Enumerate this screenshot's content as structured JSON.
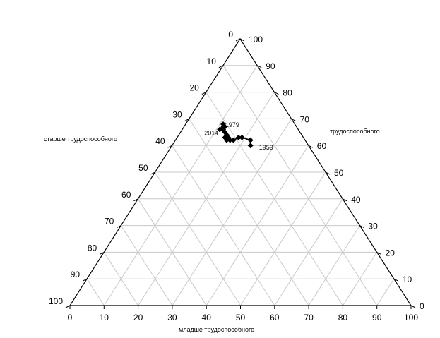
{
  "chart_data": {
    "type": "scatter",
    "subtype": "ternary",
    "title": "",
    "axes": {
      "bottom": {
        "label": "младше трудоспособного",
        "ticks": [
          0,
          10,
          20,
          30,
          40,
          50,
          60,
          70,
          80,
          90,
          100
        ]
      },
      "right": {
        "label": "трудоспособного",
        "ticks": [
          0,
          10,
          20,
          30,
          40,
          50,
          60,
          70,
          80,
          90,
          100
        ]
      },
      "left": {
        "label": "старше трудоспособного",
        "ticks": [
          0,
          10,
          20,
          30,
          40,
          50,
          60,
          70,
          80,
          90,
          100
        ]
      }
    },
    "grid": true,
    "grid_step": 10,
    "series": [
      {
        "marker": "filled-diamond",
        "color": "#000000",
        "points": [
          {
            "young": 23,
            "working": 60,
            "older": 17,
            "label": "1959"
          },
          {
            "young": 22,
            "working": 62,
            "older": 16
          },
          {
            "young": 19,
            "working": 63,
            "older": 18
          },
          {
            "young": 18,
            "working": 63,
            "older": 19
          },
          {
            "young": 17,
            "working": 62,
            "older": 21
          },
          {
            "young": 16,
            "working": 62,
            "older": 22
          },
          {
            "young": 15,
            "working": 62,
            "older": 23
          },
          {
            "young": 15,
            "working": 63,
            "older": 22
          },
          {
            "young": 14,
            "working": 63,
            "older": 23
          },
          {
            "young": 14,
            "working": 64,
            "older": 22,
            "label": "1979"
          },
          {
            "young": 13,
            "working": 65,
            "older": 22
          },
          {
            "young": 12,
            "working": 66,
            "older": 22
          },
          {
            "young": 12,
            "working": 67,
            "older": 21
          },
          {
            "young": 11,
            "working": 68,
            "older": 21
          },
          {
            "young": 11,
            "working": 66,
            "older": 23,
            "label": "2014"
          }
        ]
      }
    ]
  }
}
